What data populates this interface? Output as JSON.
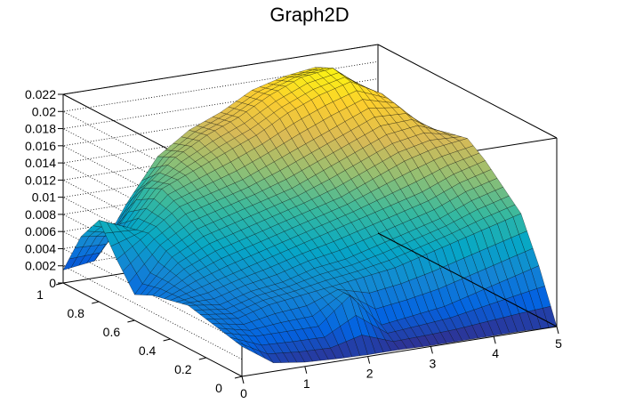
{
  "chart_data": {
    "type": "surface",
    "title": "Graph2D",
    "xlabel": "",
    "ylabel": "",
    "zlabel": "",
    "xlim": [
      0,
      5
    ],
    "ylim": [
      0,
      1
    ],
    "zlim": [
      0,
      0.022
    ],
    "x_ticks": [
      "0",
      "1",
      "2",
      "3",
      "4",
      "5"
    ],
    "y_ticks": [
      "0",
      "0.2",
      "0.4",
      "0.6",
      "0.8",
      "1"
    ],
    "z_ticks": [
      "0",
      "0.002",
      "0.004",
      "0.006",
      "0.008",
      "0.01",
      "0.012",
      "0.014",
      "0.016",
      "0.018",
      "0.02",
      "0.022"
    ],
    "grid": true,
    "colormap": "parula",
    "colormap_stops": [
      "#352a87",
      "#0363e1",
      "#1485d4",
      "#06a7c6",
      "#38b99e",
      "#92bf73",
      "#d9ba56",
      "#fcce2e",
      "#f9fb0e"
    ],
    "x_values": [
      0,
      0.5,
      1.0,
      1.5,
      2.0,
      2.5,
      3.0,
      3.5,
      4.0,
      4.5,
      5.0
    ],
    "y_values": [
      0,
      0.1,
      0.2,
      0.3,
      0.4,
      0.5,
      0.6,
      0.7,
      0.8,
      0.9,
      1.0
    ],
    "z_values": [
      [
        0.0035,
        0.001,
        0.0005,
        0.0003,
        0.0002,
        0.0002,
        0.0001,
        0.0001,
        0.0001,
        0.0001,
        0.0
      ],
      [
        0.004,
        0.003,
        0.003,
        0.003,
        0.006,
        0.002,
        0.0025,
        0.003,
        0.004,
        0.005,
        0.006
      ],
      [
        0.0045,
        0.004,
        0.005,
        0.0055,
        0.006,
        0.0065,
        0.007,
        0.008,
        0.009,
        0.01,
        0.011
      ],
      [
        0.005,
        0.0045,
        0.0055,
        0.006,
        0.007,
        0.0075,
        0.0085,
        0.0095,
        0.0105,
        0.012,
        0.013
      ],
      [
        0.0045,
        0.0055,
        0.0065,
        0.0075,
        0.0085,
        0.0095,
        0.0105,
        0.0115,
        0.0125,
        0.014,
        0.015
      ],
      [
        0.004,
        0.0065,
        0.008,
        0.009,
        0.01,
        0.011,
        0.012,
        0.0135,
        0.015,
        0.016,
        0.0165
      ],
      [
        0.003,
        0.0075,
        0.0095,
        0.0105,
        0.0115,
        0.0125,
        0.014,
        0.0155,
        0.017,
        0.0175,
        0.016
      ],
      [
        0.006,
        0.0085,
        0.011,
        0.012,
        0.013,
        0.0145,
        0.016,
        0.0175,
        0.019,
        0.0185,
        0.015
      ],
      [
        0.0095,
        0.008,
        0.012,
        0.0135,
        0.015,
        0.0165,
        0.0185,
        0.02,
        0.021,
        0.019,
        0.014
      ],
      [
        0.0065,
        0.006,
        0.011,
        0.014,
        0.016,
        0.0175,
        0.0195,
        0.021,
        0.0215,
        0.0185,
        0.013
      ],
      [
        0.0015,
        0.002,
        0.008,
        0.013,
        0.0155,
        0.017,
        0.019,
        0.02,
        0.0205,
        0.0175,
        0.012
      ]
    ]
  }
}
